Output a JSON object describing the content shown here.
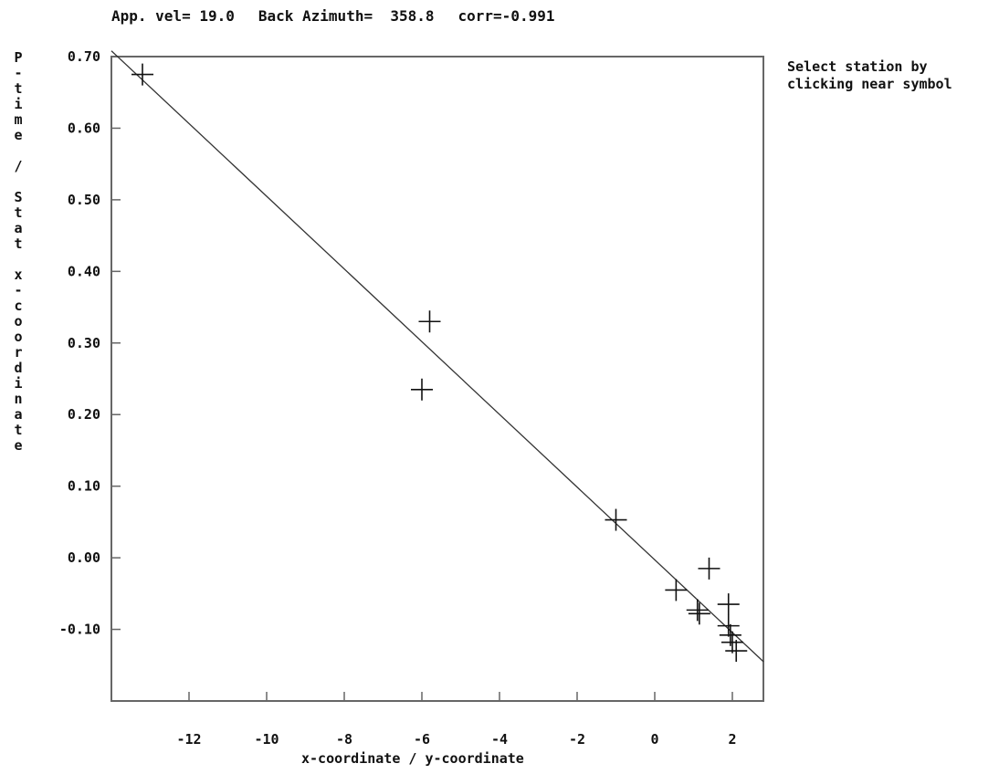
{
  "header": {
    "app_vel": "App. vel= 19.0",
    "back_azimuth": "Back Azimuth=  358.8",
    "corr": "corr=-0.991"
  },
  "hint": {
    "line1": "Select station by",
    "line2": "clicking near symbol"
  },
  "chart_data": {
    "type": "scatter",
    "title": "",
    "xlabel": "x-coordinate / y-coordinate",
    "ylabel": "P-time / Stat x-coordinate",
    "xlim": [
      -14.0,
      2.8
    ],
    "ylim": [
      -0.2,
      0.7
    ],
    "x_ticks": [
      -12,
      -10,
      -8,
      -6,
      -4,
      -2,
      0,
      2
    ],
    "y_ticks": [
      0.7,
      0.6,
      0.5,
      0.4,
      0.3,
      0.2,
      0.1,
      0.0,
      -0.1
    ],
    "y_tick_labels": [
      "0.70",
      "0.60",
      "0.50",
      "0.40",
      "0.30",
      "0.20",
      "0.10",
      "0.00",
      "-0.10"
    ],
    "points": [
      {
        "x": -13.2,
        "y": 0.675
      },
      {
        "x": -5.8,
        "y": 0.33
      },
      {
        "x": -6.0,
        "y": 0.235
      },
      {
        "x": -1.0,
        "y": 0.053
      },
      {
        "x": 1.4,
        "y": -0.015
      },
      {
        "x": 0.55,
        "y": -0.045
      },
      {
        "x": 1.1,
        "y": -0.073
      },
      {
        "x": 1.15,
        "y": -0.078
      },
      {
        "x": 1.9,
        "y": -0.065
      },
      {
        "x": 1.9,
        "y": -0.095
      },
      {
        "x": 1.95,
        "y": -0.108
      },
      {
        "x": 2.0,
        "y": -0.118
      },
      {
        "x": 2.1,
        "y": -0.13
      }
    ],
    "fit_line": {
      "x": [
        -14.0,
        2.8
      ],
      "y": [
        0.708,
        -0.145
      ]
    }
  }
}
